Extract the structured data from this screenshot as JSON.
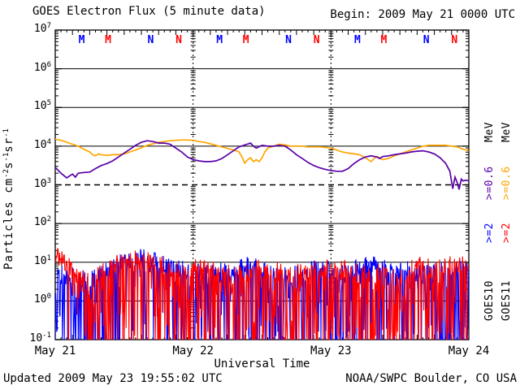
{
  "header": {
    "title": "GOES Electron Flux (5 minute data)",
    "begin": "Begin: 2009 May 21 0000 UTC"
  },
  "footer": {
    "updated": "Updated 2009 May 23 19:55:02 UTC",
    "credit": "NOAA/SWPC Boulder, CO USA"
  },
  "axes": {
    "x_label": "Universal Time",
    "x_ticks": [
      {
        "label": "May 21",
        "hour": 0
      },
      {
        "label": "May 22",
        "hour": 24
      },
      {
        "label": "May 23",
        "hour": 48
      },
      {
        "label": "May 24",
        "hour": 72
      }
    ],
    "y_label_segments": [
      {
        "text": "Particles cm"
      },
      {
        "sup": "-2"
      },
      {
        "text": "s"
      },
      {
        "sup": "-1"
      },
      {
        "text": "sr"
      },
      {
        "sup": "-1"
      }
    ],
    "y_ticks": [
      {
        "mantissa": "10",
        "exponent": "7",
        "log10": 7
      },
      {
        "mantissa": "10",
        "exponent": "6",
        "log10": 6
      },
      {
        "mantissa": "10",
        "exponent": "5",
        "log10": 5
      },
      {
        "mantissa": "10",
        "exponent": "4",
        "log10": 4
      },
      {
        "mantissa": "10",
        "exponent": "3",
        "log10": 3
      },
      {
        "mantissa": "10",
        "exponent": "2",
        "log10": 2
      },
      {
        "mantissa": "10",
        "exponent": "1",
        "log10": 1
      },
      {
        "mantissa": "10",
        "exponent": "0",
        "log10": 0
      },
      {
        "mantissa": "10",
        "exponent": "-1",
        "log10": -1
      }
    ]
  },
  "legend": {
    "columns": [
      {
        "satellite": "GOES10",
        "satellite_color": "#000000",
        "ge2_label": ">=2",
        "ge2_color": "#0000ff",
        "ge06_label": ">=0.6",
        "ge06_color": "#5a00a8",
        "mev_label": "MeV",
        "mev_color": "#000000"
      },
      {
        "satellite": "GOES11",
        "satellite_color": "#000000",
        "ge2_label": ">=2",
        "ge2_color": "#ff0000",
        "ge06_label": ">=0.6",
        "ge06_color": "#ffa500",
        "mev_label": "MeV",
        "mev_color": "#000000"
      }
    ]
  },
  "chart_data": {
    "type": "line",
    "title": "GOES Electron Flux (5 minute data)",
    "xlabel": "Universal Time",
    "ylabel": "Particles cm^-2 s^-1 sr^-1",
    "x_unit": "hours since 2009 May 21 0000 UTC",
    "x_range_hours": [
      0,
      72
    ],
    "y_scale": "log10",
    "y_range_log10": [
      -1,
      7
    ],
    "grid_solid_decades_log10": [
      6,
      5,
      4,
      2,
      1,
      0
    ],
    "alert_threshold_dashed_log10": 3,
    "day_boundaries_hours": [
      24,
      48
    ],
    "satellite_local_time_markers": [
      {
        "hour": 4.6,
        "label": "M",
        "color": "#0000ff"
      },
      {
        "hour": 9.2,
        "label": "M",
        "color": "#ff0000"
      },
      {
        "hour": 16.6,
        "label": "N",
        "color": "#0000ff"
      },
      {
        "hour": 21.5,
        "label": "N",
        "color": "#ff0000"
      },
      {
        "hour": 28.6,
        "label": "M",
        "color": "#0000ff"
      },
      {
        "hour": 33.2,
        "label": "M",
        "color": "#ff0000"
      },
      {
        "hour": 40.6,
        "label": "N",
        "color": "#0000ff"
      },
      {
        "hour": 45.5,
        "label": "N",
        "color": "#ff0000"
      },
      {
        "hour": 52.6,
        "label": "M",
        "color": "#0000ff"
      },
      {
        "hour": 57.2,
        "label": "M",
        "color": "#ff0000"
      },
      {
        "hour": 64.6,
        "label": "N",
        "color": "#0000ff"
      },
      {
        "hour": 69.5,
        "label": "N",
        "color": "#ff0000"
      }
    ],
    "series": [
      {
        "name": "GOES10 >=0.6 MeV",
        "color": "#5a00a8",
        "render": "smooth",
        "points_t_log10": [
          [
            0,
            3.45
          ],
          [
            1,
            3.3
          ],
          [
            2,
            3.18
          ],
          [
            3,
            3.28
          ],
          [
            3.5,
            3.2
          ],
          [
            4,
            3.3
          ],
          [
            5,
            3.32
          ],
          [
            6,
            3.33
          ],
          [
            7,
            3.42
          ],
          [
            8,
            3.5
          ],
          [
            9,
            3.55
          ],
          [
            10,
            3.62
          ],
          [
            11,
            3.72
          ],
          [
            12,
            3.82
          ],
          [
            13,
            3.92
          ],
          [
            14,
            4.02
          ],
          [
            15,
            4.1
          ],
          [
            16,
            4.14
          ],
          [
            17,
            4.12
          ],
          [
            18,
            4.08
          ],
          [
            19,
            4.08
          ],
          [
            20,
            4.05
          ],
          [
            21,
            3.95
          ],
          [
            22,
            3.85
          ],
          [
            23,
            3.72
          ],
          [
            24,
            3.65
          ],
          [
            25,
            3.62
          ],
          [
            26,
            3.6
          ],
          [
            27,
            3.6
          ],
          [
            28,
            3.62
          ],
          [
            29,
            3.68
          ],
          [
            30,
            3.78
          ],
          [
            31,
            3.88
          ],
          [
            32,
            3.98
          ],
          [
            33,
            4.03
          ],
          [
            34,
            4.08
          ],
          [
            34.5,
            4.0
          ],
          [
            35,
            3.95
          ],
          [
            36,
            4.02
          ],
          [
            37,
            4.0
          ],
          [
            38,
            4.0
          ],
          [
            39,
            4.02
          ],
          [
            40,
            4.0
          ],
          [
            41,
            3.9
          ],
          [
            42,
            3.78
          ],
          [
            43,
            3.68
          ],
          [
            44,
            3.58
          ],
          [
            45,
            3.5
          ],
          [
            46,
            3.44
          ],
          [
            47,
            3.4
          ],
          [
            48,
            3.37
          ],
          [
            49,
            3.35
          ],
          [
            50,
            3.35
          ],
          [
            51,
            3.42
          ],
          [
            52,
            3.55
          ],
          [
            53,
            3.65
          ],
          [
            54,
            3.72
          ],
          [
            55,
            3.75
          ],
          [
            56,
            3.72
          ],
          [
            56.5,
            3.68
          ],
          [
            57,
            3.73
          ],
          [
            58,
            3.75
          ],
          [
            59,
            3.78
          ],
          [
            60,
            3.8
          ],
          [
            61,
            3.82
          ],
          [
            62,
            3.85
          ],
          [
            63,
            3.87
          ],
          [
            64,
            3.88
          ],
          [
            65,
            3.85
          ],
          [
            66,
            3.8
          ],
          [
            67,
            3.7
          ],
          [
            68,
            3.55
          ],
          [
            68.7,
            3.35
          ],
          [
            69.2,
            2.9
          ],
          [
            69.6,
            3.2
          ],
          [
            70,
            3.05
          ],
          [
            70.3,
            2.88
          ],
          [
            70.7,
            3.15
          ],
          [
            71,
            3.1
          ],
          [
            71.5,
            3.12
          ],
          [
            72,
            3.1
          ]
        ]
      },
      {
        "name": "GOES11 >=0.6 MeV",
        "color": "#ffa500",
        "render": "smooth",
        "points_t_log10": [
          [
            0,
            4.18
          ],
          [
            1,
            4.15
          ],
          [
            2,
            4.1
          ],
          [
            3,
            4.05
          ],
          [
            4,
            4.0
          ],
          [
            5,
            3.92
          ],
          [
            6,
            3.85
          ],
          [
            6.5,
            3.78
          ],
          [
            7,
            3.75
          ],
          [
            7.5,
            3.8
          ],
          [
            8,
            3.78
          ],
          [
            9,
            3.76
          ],
          [
            10,
            3.78
          ],
          [
            11,
            3.78
          ],
          [
            12,
            3.8
          ],
          [
            13,
            3.85
          ],
          [
            14,
            3.9
          ],
          [
            15,
            3.96
          ],
          [
            16,
            4.02
          ],
          [
            17,
            4.06
          ],
          [
            18,
            4.1
          ],
          [
            19,
            4.12
          ],
          [
            20,
            4.14
          ],
          [
            21,
            4.15
          ],
          [
            22,
            4.16
          ],
          [
            23,
            4.16
          ],
          [
            24,
            4.15
          ],
          [
            25,
            4.12
          ],
          [
            26,
            4.1
          ],
          [
            27,
            4.06
          ],
          [
            28,
            4.02
          ],
          [
            29,
            3.98
          ],
          [
            30,
            3.94
          ],
          [
            31,
            3.9
          ],
          [
            32,
            3.85
          ],
          [
            32.5,
            3.72
          ],
          [
            33,
            3.56
          ],
          [
            33.5,
            3.65
          ],
          [
            34,
            3.7
          ],
          [
            34.5,
            3.6
          ],
          [
            35,
            3.65
          ],
          [
            35.5,
            3.6
          ],
          [
            36,
            3.7
          ],
          [
            36.5,
            3.85
          ],
          [
            37,
            3.95
          ],
          [
            38,
            4.0
          ],
          [
            39,
            4.05
          ],
          [
            40,
            4.03
          ],
          [
            41,
            4.0
          ],
          [
            42,
            4.0
          ],
          [
            43,
            4.0
          ],
          [
            44,
            3.98
          ],
          [
            45,
            3.98
          ],
          [
            46,
            3.98
          ],
          [
            47,
            3.97
          ],
          [
            48,
            3.95
          ],
          [
            49,
            3.9
          ],
          [
            50,
            3.85
          ],
          [
            51,
            3.82
          ],
          [
            52,
            3.8
          ],
          [
            53,
            3.78
          ],
          [
            54,
            3.7
          ],
          [
            55,
            3.6
          ],
          [
            55.5,
            3.68
          ],
          [
            56,
            3.73
          ],
          [
            56.5,
            3.7
          ],
          [
            57,
            3.65
          ],
          [
            58,
            3.68
          ],
          [
            59,
            3.75
          ],
          [
            60,
            3.8
          ],
          [
            61,
            3.85
          ],
          [
            62,
            3.9
          ],
          [
            63,
            3.95
          ],
          [
            64,
            4.0
          ],
          [
            65,
            4.02
          ],
          [
            66,
            4.02
          ],
          [
            67,
            4.02
          ],
          [
            68,
            4.02
          ],
          [
            69,
            4.0
          ],
          [
            70,
            3.98
          ],
          [
            71,
            3.92
          ],
          [
            72,
            3.88
          ]
        ]
      },
      {
        "name": "GOES10 >=2 MeV",
        "color": "#0000ff",
        "render": "noise",
        "seed": 20090521,
        "step_minutes": 5,
        "floor_log10": -1,
        "envelope_t_top_dropprob": [
          [
            0,
            0.95,
            0.7
          ],
          [
            2,
            0.9,
            0.6
          ],
          [
            4,
            0.85,
            0.6
          ],
          [
            6,
            0.8,
            0.55
          ],
          [
            9,
            1.05,
            0.45
          ],
          [
            12,
            1.25,
            0.3
          ],
          [
            15,
            1.35,
            0.28
          ],
          [
            18,
            1.25,
            0.35
          ],
          [
            21,
            1.15,
            0.4
          ],
          [
            24,
            1.05,
            0.5
          ],
          [
            27,
            0.95,
            0.5
          ],
          [
            30,
            1.05,
            0.4
          ],
          [
            33,
            1.2,
            0.32
          ],
          [
            36,
            1.05,
            0.4
          ],
          [
            39,
            0.95,
            0.45
          ],
          [
            42,
            0.95,
            0.5
          ],
          [
            45,
            1.05,
            0.42
          ],
          [
            48,
            1.05,
            0.42
          ],
          [
            51,
            1.0,
            0.45
          ],
          [
            54,
            1.15,
            0.32
          ],
          [
            57,
            1.15,
            0.3
          ],
          [
            60,
            1.05,
            0.35
          ],
          [
            63,
            1.0,
            0.45
          ],
          [
            66,
            0.95,
            0.5
          ],
          [
            69,
            1.05,
            0.4
          ],
          [
            72,
            1.05,
            0.4
          ]
        ]
      },
      {
        "name": "GOES11 >=2 MeV",
        "color": "#ff0000",
        "render": "noise",
        "seed": 19551102,
        "step_minutes": 5,
        "floor_log10": -1,
        "envelope_t_top_dropprob": [
          [
            0,
            1.5,
            0.05
          ],
          [
            1,
            1.35,
            0.1
          ],
          [
            2,
            1.2,
            0.15
          ],
          [
            3,
            1.0,
            0.3
          ],
          [
            4,
            0.9,
            0.45
          ],
          [
            6,
            0.75,
            0.55
          ],
          [
            9,
            1.05,
            0.45
          ],
          [
            12,
            1.3,
            0.35
          ],
          [
            15,
            1.3,
            0.4
          ],
          [
            18,
            1.2,
            0.5
          ],
          [
            21,
            1.05,
            0.55
          ],
          [
            24,
            1.1,
            0.45
          ],
          [
            27,
            1.1,
            0.45
          ],
          [
            30,
            0.95,
            0.55
          ],
          [
            33,
            0.95,
            0.5
          ],
          [
            36,
            1.1,
            0.4
          ],
          [
            39,
            1.0,
            0.5
          ],
          [
            42,
            0.95,
            0.58
          ],
          [
            45,
            1.05,
            0.5
          ],
          [
            48,
            1.15,
            0.4
          ],
          [
            51,
            1.05,
            0.5
          ],
          [
            54,
            0.95,
            0.55
          ],
          [
            57,
            1.05,
            0.5
          ],
          [
            60,
            0.8,
            0.55
          ],
          [
            63,
            1.2,
            0.35
          ],
          [
            66,
            1.1,
            0.45
          ],
          [
            69,
            1.2,
            0.3
          ],
          [
            72,
            1.2,
            0.3
          ]
        ]
      }
    ]
  }
}
